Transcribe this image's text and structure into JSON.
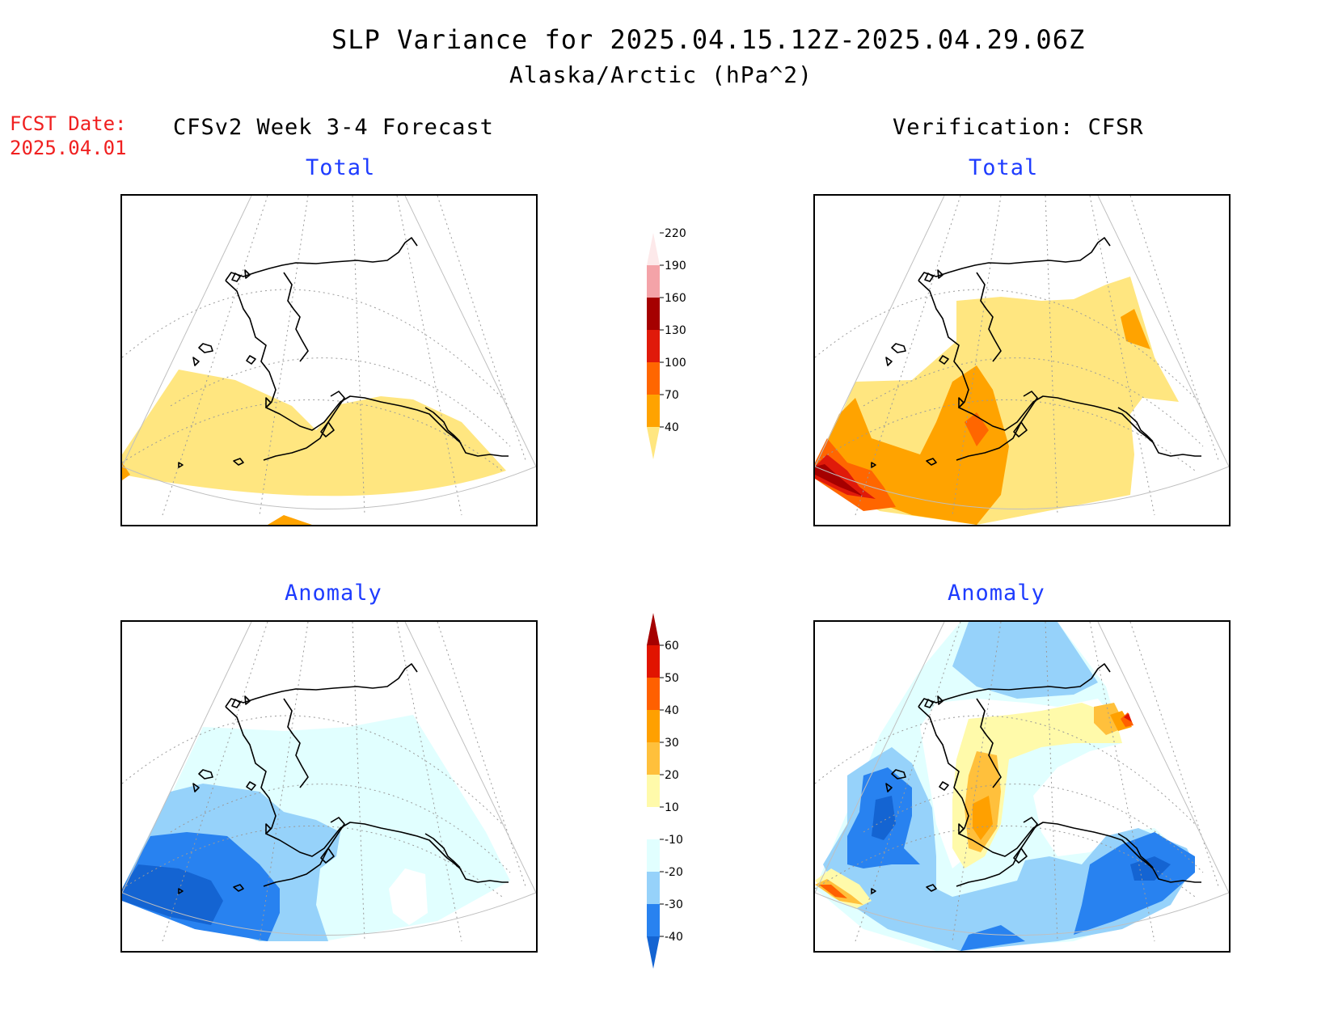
{
  "title": "SLP Variance for 2025.04.15.12Z-2025.04.29.06Z",
  "subtitle": "Alaska/Arctic (hPa^2)",
  "fcst_date": {
    "label": "FCST Date:",
    "value": "2025.04.01"
  },
  "columns": {
    "left": "CFSv2 Week 3-4 Forecast",
    "right": "Verification: CFSR"
  },
  "panels": {
    "fcst_total": {
      "title": "Total"
    },
    "verif_total": {
      "title": "Total"
    },
    "fcst_anomaly": {
      "title": "Anomaly"
    },
    "verif_anomaly": {
      "title": "Anomaly"
    }
  },
  "colorbars": {
    "total": {
      "levels": [
        "40",
        "70",
        "100",
        "130",
        "160",
        "190",
        "220"
      ],
      "colors": [
        "#ffe680",
        "#ffa300",
        "#ff6600",
        "#e01a0a",
        "#a50000",
        "#f4a3a8",
        "#fde9ea"
      ]
    },
    "anomaly": {
      "levels": [
        "-40",
        "-30",
        "-20",
        "-10",
        "10",
        "20",
        "30",
        "40",
        "50",
        "60"
      ],
      "colors": [
        "#1464d2",
        "#2882f0",
        "#96d2fa",
        "#e1ffff",
        "#ffffff",
        "#fffaaa",
        "#ffc03c",
        "#ffa000",
        "#ff6000",
        "#e11400",
        "#a50000"
      ]
    }
  }
}
